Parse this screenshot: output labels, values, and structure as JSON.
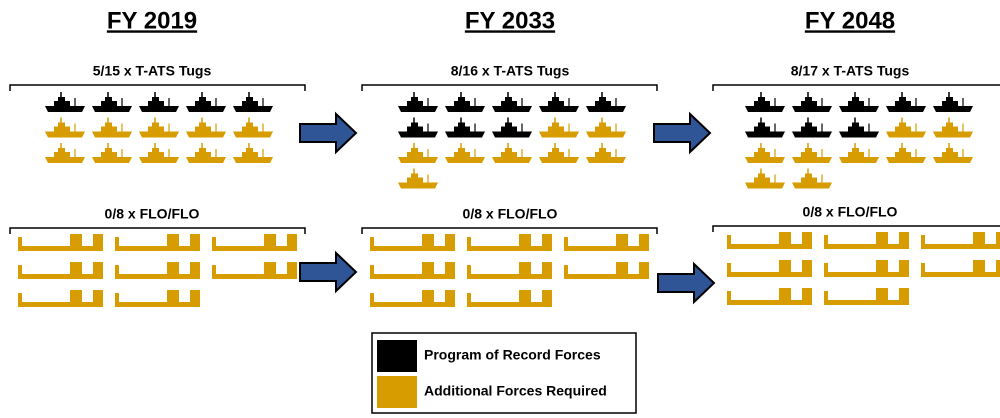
{
  "columns": [
    {
      "title": "FY 2019",
      "tugs": {
        "label": "5/15 x T-ATS Tugs",
        "program": 5,
        "total": 15
      },
      "flo": {
        "label": "0/8 x FLO/FLO",
        "program": 0,
        "total": 8
      }
    },
    {
      "title": "FY 2033",
      "tugs": {
        "label": "8/16 x T-ATS Tugs",
        "program": 8,
        "total": 16
      },
      "flo": {
        "label": "0/8 x FLO/FLO",
        "program": 0,
        "total": 8
      }
    },
    {
      "title": "FY 2048",
      "tugs": {
        "label": "8/17 x T-ATS Tugs",
        "program": 8,
        "total": 17
      },
      "flo": {
        "label": "0/8 x FLO/FLO",
        "program": 0,
        "total": 8
      }
    }
  ],
  "legend": [
    {
      "label": "Program of Record Forces",
      "color": "#000000"
    },
    {
      "label": "Additional Forces Required",
      "color": "#d69c00"
    }
  ]
}
